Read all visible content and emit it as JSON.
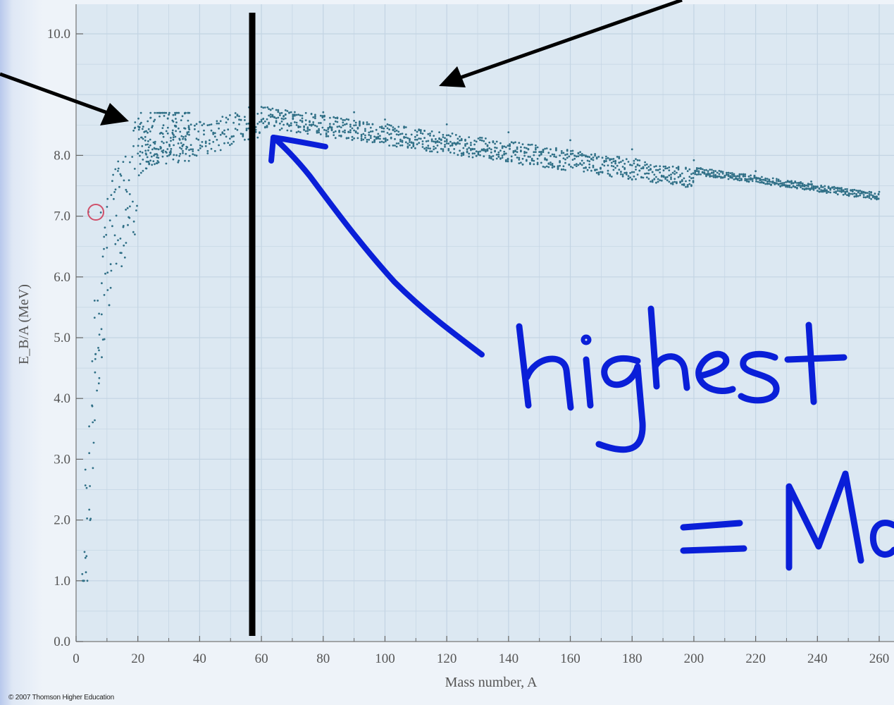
{
  "chart_data": {
    "type": "scatter",
    "title": "",
    "xlabel": "Mass number, A",
    "ylabel": "E_B/A (MeV)",
    "xlim": [
      0,
      260
    ],
    "ylim": [
      0,
      10.4
    ],
    "x_ticks": [
      "0",
      "20",
      "40",
      "60",
      "80",
      "100",
      "120",
      "140",
      "160",
      "180",
      "200",
      "220",
      "240",
      "260"
    ],
    "y_ticks": [
      "0.0",
      "1.0",
      "2.0",
      "3.0",
      "4.0",
      "5.0",
      "6.0",
      "7.0",
      "8.0",
      "10.0"
    ],
    "grid": true,
    "series": [
      {
        "points_sample": [
          [
            2,
            1.11
          ],
          [
            3,
            2.57
          ],
          [
            3,
            2.83
          ],
          [
            4,
            7.07
          ],
          [
            6,
            5.33
          ],
          [
            6,
            5.61
          ],
          [
            7,
            5.61
          ],
          [
            8,
            7.06
          ],
          [
            9,
            6.46
          ],
          [
            10,
            6.48
          ],
          [
            11,
            6.93
          ],
          [
            12,
            7.68
          ],
          [
            14,
            7.48
          ],
          [
            16,
            7.98
          ],
          [
            19,
            7.78
          ],
          [
            20,
            8.03
          ],
          [
            24,
            8.26
          ],
          [
            28,
            8.45
          ],
          [
            32,
            8.49
          ],
          [
            40,
            8.55
          ],
          [
            56,
            8.79
          ],
          [
            62,
            8.79
          ],
          [
            80,
            8.71
          ],
          [
            90,
            8.71
          ],
          [
            100,
            8.59
          ],
          [
            120,
            8.51
          ],
          [
            140,
            8.38
          ],
          [
            160,
            8.25
          ],
          [
            180,
            8.1
          ],
          [
            200,
            7.92
          ],
          [
            220,
            7.74
          ],
          [
            238,
            7.57
          ],
          [
            260,
            7.4
          ]
        ],
        "highlighted_point": [
          6,
          7.07
        ]
      }
    ],
    "annotations": {
      "vertical_line_x": 57,
      "handwritten_text": [
        "highest",
        "= Ma"
      ]
    }
  },
  "copyright": "© 2007 Thomson Higher Education",
  "colors": {
    "plot_bg": "#dce8f2",
    "grid": "#bccede",
    "points": "#2f6f86",
    "highlight": "#d0506a",
    "ink_blue": "#0a1fd8",
    "ink_black": "#000000"
  }
}
